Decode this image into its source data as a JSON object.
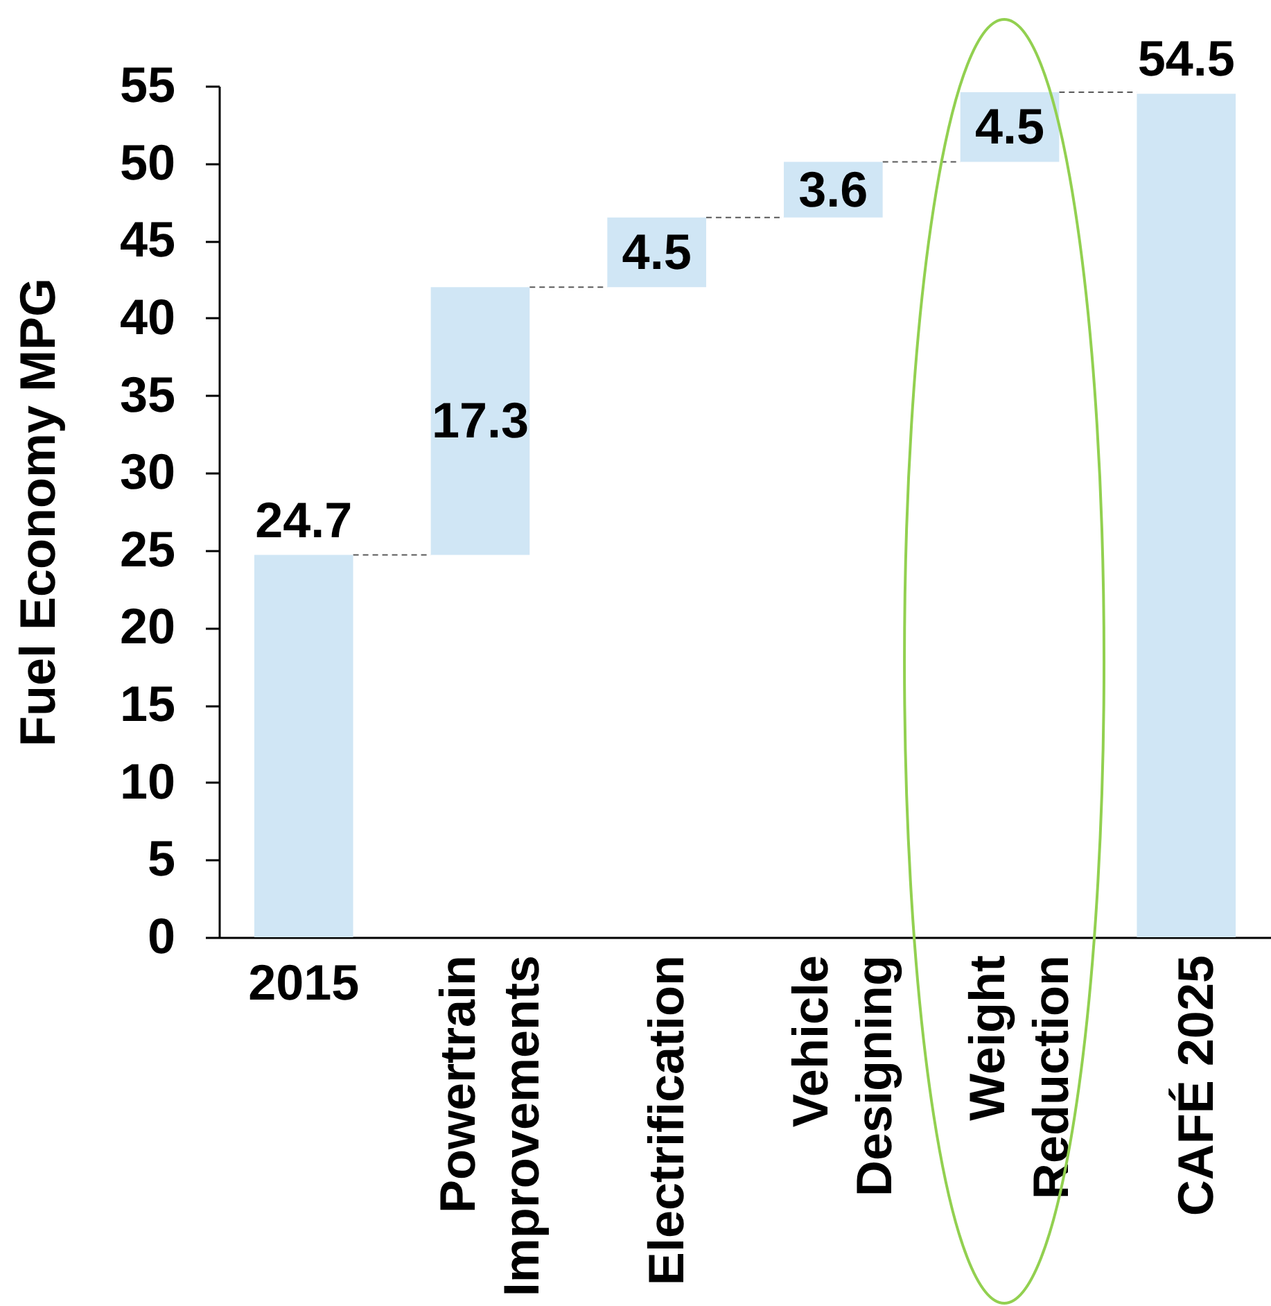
{
  "chart_data": {
    "type": "bar",
    "ylabel": "Fuel Economy MPG",
    "categories": [
      "2015",
      "Powertrain Improvements",
      "Electrification",
      "Vehicle Designing",
      "Weight Reduction",
      "CAFÉ 2025"
    ],
    "values": [
      24.7,
      17.3,
      4.5,
      3.6,
      4.5,
      54.5
    ],
    "base": [
      0,
      24.7,
      42.0,
      46.5,
      50.1,
      0
    ],
    "color": "#d0e6f5",
    "ylim": [
      0,
      55
    ],
    "yticks": [
      0,
      5,
      10,
      15,
      20,
      25,
      30,
      35,
      40,
      45,
      50,
      55
    ],
    "data_labels": true
  }
}
